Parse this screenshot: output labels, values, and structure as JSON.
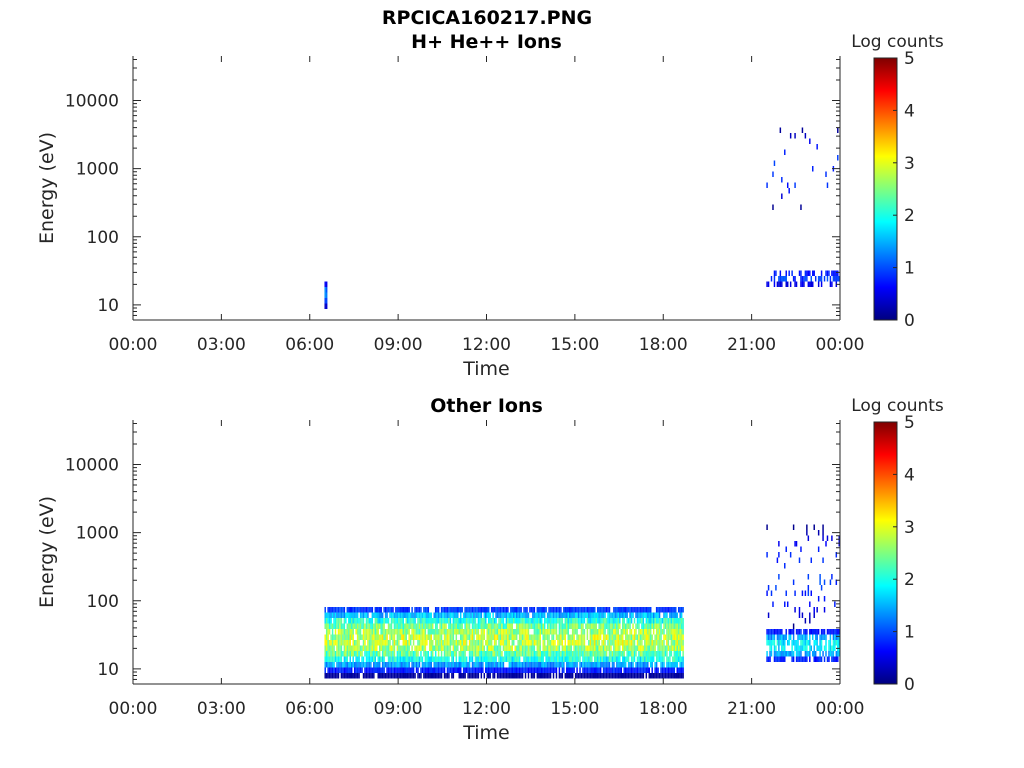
{
  "figure_title": "RPCICA160217.PNG",
  "colormap_colors": [
    "#00007f",
    "#0000ff",
    "#007fff",
    "#00ffff",
    "#7fff7f",
    "#ffff00",
    "#ff7f00",
    "#ff0000",
    "#7f0000"
  ],
  "chart_data": [
    {
      "type": "heatmap",
      "title": "H+ He++ Ions",
      "xlabel": "Time",
      "ylabel": "Energy (eV)",
      "x_ticks": [
        "00:00",
        "03:00",
        "06:00",
        "09:00",
        "12:00",
        "15:00",
        "18:00",
        "21:00",
        "00:00"
      ],
      "x_range_hours": [
        0,
        24
      ],
      "y_ticks": [
        "10",
        "100",
        "1000",
        "10000"
      ],
      "y_range_eV": [
        6,
        45000
      ],
      "y_scale": "log",
      "colorbar": {
        "label": "Log counts",
        "ticks": [
          "0",
          "1",
          "2",
          "3",
          "4",
          "5"
        ],
        "range": [
          0,
          5
        ]
      },
      "regions": [
        {
          "time_start_h": 6.5,
          "time_end_h": 6.6,
          "energy_min_eV": 9,
          "energy_max_eV": 22,
          "log_counts_peak": 1.5,
          "density": 1.0
        },
        {
          "time_start_h": 21.5,
          "time_end_h": 24.0,
          "energy_min_eV": 18,
          "energy_max_eV": 35,
          "log_counts_peak": 1.0,
          "density": 0.55
        },
        {
          "time_start_h": 21.5,
          "time_end_h": 24.0,
          "energy_min_eV": 250,
          "energy_max_eV": 4000,
          "log_counts_peak": 1.0,
          "density": 0.04
        }
      ]
    },
    {
      "type": "heatmap",
      "title": "Other Ions",
      "xlabel": "Time",
      "ylabel": "Energy (eV)",
      "x_ticks": [
        "00:00",
        "03:00",
        "06:00",
        "09:00",
        "12:00",
        "15:00",
        "18:00",
        "21:00",
        "00:00"
      ],
      "x_range_hours": [
        0,
        24
      ],
      "y_ticks": [
        "10",
        "100",
        "1000",
        "10000"
      ],
      "y_range_eV": [
        6,
        45000
      ],
      "y_scale": "log",
      "colorbar": {
        "label": "Log counts",
        "ticks": [
          "0",
          "1",
          "2",
          "3",
          "4",
          "5"
        ],
        "range": [
          0,
          5
        ]
      },
      "regions": [
        {
          "time_start_h": 6.5,
          "time_end_h": 18.7,
          "energy_min_eV": 7,
          "energy_max_eV": 80,
          "log_counts_peak": 3.0,
          "peak_energy_eV": 27,
          "density": 0.9
        },
        {
          "time_start_h": 21.5,
          "time_end_h": 24.0,
          "energy_min_eV": 12,
          "energy_max_eV": 40,
          "log_counts_peak": 2.0,
          "peak_energy_eV": 22,
          "density": 0.75
        },
        {
          "time_start_h": 21.5,
          "time_end_h": 24.0,
          "energy_min_eV": 40,
          "energy_max_eV": 1300,
          "log_counts_peak": 1.0,
          "density": 0.08
        }
      ]
    }
  ]
}
